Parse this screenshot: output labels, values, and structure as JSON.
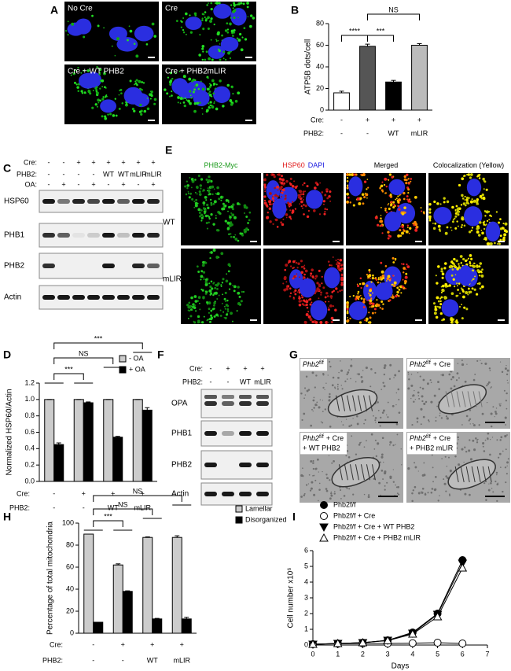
{
  "figure": {
    "panel_labels": [
      "A",
      "B",
      "C",
      "D",
      "E",
      "F",
      "G",
      "H",
      "I"
    ],
    "A": {
      "labels": [
        "No Cre",
        "Cre",
        "Cre + WT PHB2",
        "Cre + PHB2mLIR"
      ]
    },
    "C": {
      "conditions": [
        {
          "label": "Cre:",
          "values": [
            "-",
            "-",
            "+",
            "+",
            "+",
            "+",
            "+",
            "+"
          ]
        },
        {
          "label": "PHB2:",
          "values": [
            "-",
            "-",
            "-",
            "-",
            "WT",
            "WT",
            "mLIR",
            "mLIR"
          ]
        },
        {
          "label": "OA:",
          "values": [
            "-",
            "+",
            "-",
            "+",
            "-",
            "+",
            "-",
            "+"
          ]
        }
      ],
      "rows": [
        "HSP60",
        "PHB1",
        "PHB2",
        "Actin"
      ]
    },
    "E": {
      "columns": [
        [
          "PHB2-Myc"
        ],
        [
          "HSP60",
          "DAPI"
        ],
        [
          "Merged"
        ],
        [
          "Colocalization (Yellow)"
        ]
      ],
      "rows": [
        "WT",
        "mLIR"
      ]
    },
    "F": {
      "conditions": [
        {
          "label": "Cre:",
          "values": [
            "-",
            "+",
            "+",
            "+"
          ]
        },
        {
          "label": "PHB2:",
          "values": [
            "-",
            "-",
            "WT",
            "mLIR"
          ]
        }
      ],
      "rows": [
        "OPA",
        "PHB1",
        "PHB2",
        "Actin"
      ]
    },
    "G": {
      "labels": [
        {
          "gene": "Phb2",
          "sup": "f/f",
          "rest": []
        },
        {
          "gene": "Phb2",
          "sup": "f/f",
          "rest": [
            "+ Cre"
          ]
        },
        {
          "gene": "Phb2",
          "sup": "f/f",
          "rest": [
            "+ Cre",
            "+ WT PHB2"
          ]
        },
        {
          "gene": "Phb2",
          "sup": "f/f",
          "rest": [
            "+ Cre",
            "+ PHB2 mLIR"
          ]
        }
      ]
    }
  },
  "chart_data": [
    {
      "type": "bar",
      "ylabel": "ATP5B dots/cell",
      "values": [
        16,
        59,
        26,
        60
      ],
      "errors": [
        1.5,
        2,
        1.5,
        1.5
      ],
      "colors": [
        "#ffffff",
        "#555555",
        "#000000",
        "#bbbbbb"
      ],
      "ylim": [
        0,
        80
      ],
      "yticks": [
        0,
        20,
        40,
        60,
        80
      ],
      "significance": [
        "NS",
        "****",
        "***"
      ],
      "conditions": [
        {
          "label": "Cre:",
          "values": [
            "-",
            "+",
            "+",
            "+"
          ]
        },
        {
          "label": "PHB2:",
          "values": [
            "-",
            "-",
            "WT",
            "mLIR"
          ]
        }
      ]
    },
    {
      "type": "bar",
      "ylabel": "Normalized HSP60/Actin",
      "series": [
        {
          "name": "- OA",
          "color": "#cccccc",
          "values": [
            1.0,
            1.0,
            1.0,
            1.0
          ],
          "errors": [
            0,
            0,
            0,
            0
          ]
        },
        {
          "name": "+ OA",
          "color": "#000000",
          "values": [
            0.45,
            0.96,
            0.54,
            0.87
          ],
          "errors": [
            0.02,
            0.01,
            0.01,
            0.03
          ]
        }
      ],
      "ylim": [
        0,
        1.2
      ],
      "yticks": [
        {
          "value": 0,
          "label": "0.0"
        },
        0.2,
        0.4,
        0.6,
        0.8,
        {
          "value": 1,
          "label": "1.0"
        },
        1.2
      ],
      "significance": [
        "***",
        "NS",
        "***"
      ],
      "conditions": [
        {
          "label": "Cre:",
          "values": [
            "-",
            "+",
            "+",
            "+"
          ]
        },
        {
          "label": "PHB2:",
          "values": [
            "-",
            "-",
            "WT",
            "mLIR"
          ]
        }
      ]
    },
    {
      "type": "bar",
      "ylabel": "Percentage of total mitochondria",
      "series": [
        {
          "name": "Lamellar",
          "color": "#cccccc",
          "values": [
            90,
            62,
            87,
            87
          ],
          "errors": [
            0,
            1,
            0.5,
            1.5
          ]
        },
        {
          "name": "Disorganized",
          "color": "#000000",
          "values": [
            10,
            38,
            13,
            13
          ],
          "errors": [
            0,
            0.5,
            0.5,
            1.5
          ]
        }
      ],
      "ylim": [
        0,
        100
      ],
      "yticks": [
        0,
        20,
        40,
        60,
        80,
        100
      ],
      "significance": [
        "NS",
        "NS",
        "***"
      ],
      "conditions": [
        {
          "label": "Cre:",
          "values": [
            "-",
            "+",
            "+",
            "+"
          ]
        },
        {
          "label": "PHB2:",
          "values": [
            "-",
            "-",
            "WT",
            "mLIR"
          ]
        }
      ]
    },
    {
      "type": "line",
      "xlabel": "Days",
      "ylabel": "Cell number x10⁶",
      "x": [
        0,
        1,
        2,
        3,
        4,
        5,
        6
      ],
      "xlim": [
        0,
        7
      ],
      "xticks": [
        0,
        1,
        2,
        3,
        4,
        5,
        6,
        7
      ],
      "ylim": [
        0,
        6
      ],
      "yticks": [
        0,
        1,
        2,
        3,
        4,
        5,
        6
      ],
      "series": [
        {
          "name": "Phb2f/f",
          "color": "#000000",
          "marker": "circle",
          "filled": true,
          "values": [
            0.05,
            0.1,
            0.15,
            0.3,
            0.8,
            2.0,
            5.4
          ]
        },
        {
          "name": "Phb2f/f + Cre",
          "color": "#000000",
          "marker": "circle",
          "filled": false,
          "values": [
            0.05,
            0.08,
            0.1,
            0.1,
            0.12,
            0.15,
            0.1
          ]
        },
        {
          "name": "Phb2f/f + Cre + WT PHB2",
          "color": "#000000",
          "marker": "triangle-down",
          "filled": true,
          "values": [
            0.05,
            0.1,
            0.15,
            0.3,
            0.75,
            1.95,
            5.2
          ]
        },
        {
          "name": "Phb2f/f + Cre + PHB2 mLIR",
          "color": "#000000",
          "marker": "triangle-up",
          "filled": false,
          "values": [
            0.05,
            0.1,
            0.15,
            0.28,
            0.7,
            1.8,
            4.9
          ]
        }
      ]
    }
  ]
}
